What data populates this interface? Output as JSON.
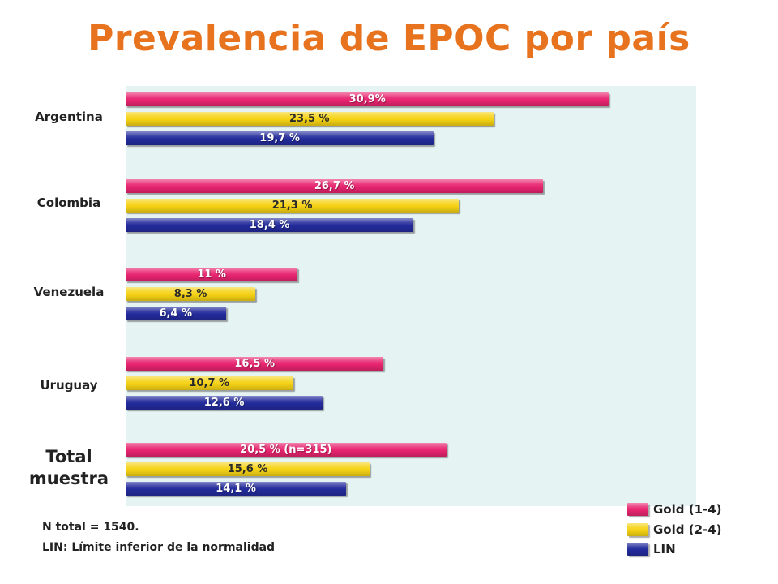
{
  "title": "Prevalencia de EPOC por país",
  "colors": {
    "gold_1_4": "#e8246f",
    "gold_2_4": "#f5d214",
    "lin": "#232b9c",
    "plot_background": "#e5f3f2",
    "title": "#e8731e"
  },
  "notes": {
    "n_total": "N total = 1540.",
    "lin_definition": "LIN: Límite inferior de  la normalidad"
  },
  "chart_data": {
    "type": "bar",
    "orientation": "horizontal",
    "title": "Prevalencia de EPOC por país",
    "categories": [
      "Argentina",
      "Colombia",
      "Venezuela",
      "Uruguay",
      "Total muestra"
    ],
    "series": [
      {
        "name": "Gold (1-4)",
        "color": "#e8246f",
        "values": [
          30.9,
          26.7,
          11,
          16.5,
          20.5
        ],
        "labels": [
          "30,9%",
          "26,7 %",
          "11 %",
          "16,5 %",
          "20,5 % (n=315)"
        ]
      },
      {
        "name": "Gold (2-4)",
        "color": "#f5d214",
        "values": [
          23.5,
          21.3,
          8.3,
          10.7,
          15.6
        ],
        "labels": [
          "23,5 %",
          "21,3 %",
          "8,3 %",
          "10,7 %",
          "15,6 %"
        ]
      },
      {
        "name": "LIN",
        "color": "#232b9c",
        "values": [
          19.7,
          18.4,
          6.4,
          12.6,
          14.1
        ],
        "labels": [
          "19,7 %",
          "18,4 %",
          "6,4 %",
          "12,6 %",
          "14,1 %"
        ]
      }
    ],
    "xlim": [
      0,
      36
    ],
    "axes_visible": false,
    "grid": false,
    "legend_position": "bottom-right"
  }
}
